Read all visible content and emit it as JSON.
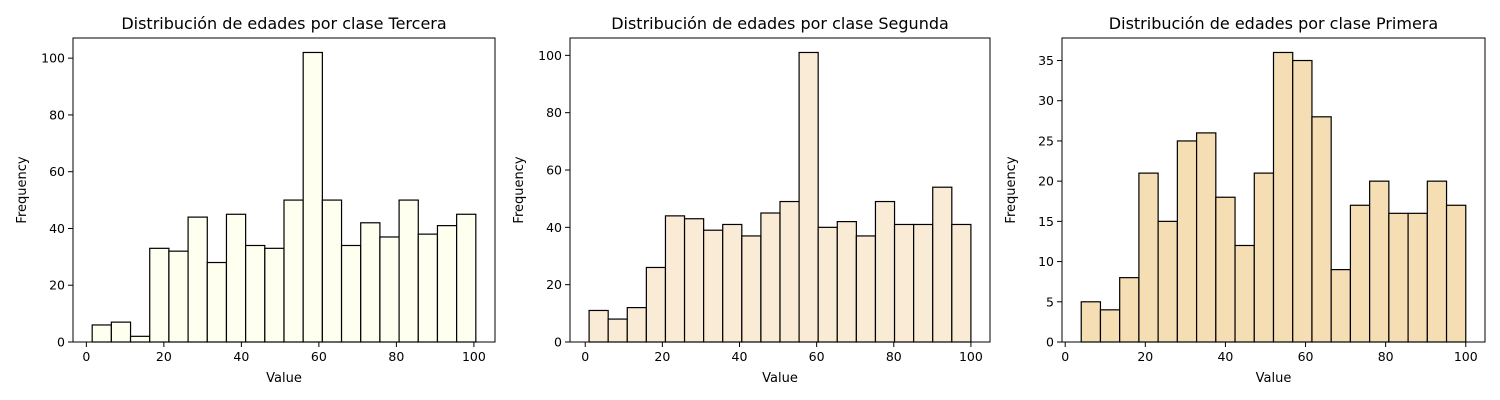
{
  "chart_data": [
    {
      "type": "bar",
      "title": "Distribución de edades por clase Tercera",
      "xlabel": "Value",
      "ylabel": "Frequency",
      "bar_color": "#fffff0",
      "bin_edges": [
        1.5,
        6.45,
        11.4,
        16.35,
        21.3,
        26.25,
        31.2,
        36.15,
        41.1,
        46.05,
        51.0,
        55.95,
        60.9,
        65.85,
        70.8,
        75.75,
        80.7,
        85.65,
        90.6,
        95.55,
        100.5
      ],
      "values": [
        6,
        7,
        2,
        33,
        32,
        44,
        28,
        45,
        34,
        33,
        50,
        102,
        50,
        34,
        42,
        37,
        50,
        38,
        41,
        45
      ],
      "xlim": [
        -3.45,
        105.45
      ],
      "ylim": [
        0,
        107.1
      ],
      "xticks": [
        0,
        20,
        40,
        60,
        80,
        100
      ],
      "yticks": [
        0,
        20,
        40,
        60,
        80,
        100
      ]
    },
    {
      "type": "bar",
      "title": "Distribución de edades por clase Segunda",
      "xlabel": "Value",
      "ylabel": "Frequency",
      "bar_color": "#faebd7",
      "bin_edges": [
        1.0,
        5.95,
        10.9,
        15.85,
        20.8,
        25.75,
        30.7,
        35.65,
        40.6,
        45.55,
        50.5,
        55.45,
        60.4,
        65.35,
        70.3,
        75.25,
        80.2,
        85.15,
        90.1,
        95.05,
        100.0
      ],
      "values": [
        11,
        8,
        12,
        26,
        44,
        43,
        39,
        41,
        37,
        45,
        49,
        101,
        40,
        42,
        37,
        49,
        41,
        41,
        54,
        41
      ],
      "xlim": [
        -3.95,
        104.95
      ],
      "ylim": [
        0,
        106.05
      ],
      "xticks": [
        0,
        20,
        40,
        60,
        80,
        100
      ],
      "yticks": [
        0,
        20,
        40,
        60,
        80,
        100
      ]
    },
    {
      "type": "bar",
      "title": "Distribución de edades por clase Primera",
      "xlabel": "Value",
      "ylabel": "Frequency",
      "bar_color": "#f5deb3",
      "bin_edges": [
        4.0,
        8.8,
        13.6,
        18.4,
        23.2,
        28.0,
        32.8,
        37.6,
        42.4,
        47.2,
        52.0,
        56.8,
        61.6,
        66.4,
        71.2,
        76.0,
        80.8,
        85.6,
        90.4,
        95.2,
        100.0
      ],
      "values": [
        5,
        4,
        8,
        21,
        15,
        25,
        26,
        18,
        12,
        21,
        36,
        35,
        28,
        9,
        17,
        20,
        16,
        16,
        20,
        17
      ],
      "xlim": [
        -0.8,
        104.8
      ],
      "ylim": [
        0,
        37.8
      ],
      "xticks": [
        0,
        20,
        40,
        60,
        80,
        100
      ],
      "yticks": [
        0,
        5,
        10,
        15,
        20,
        25,
        30,
        35
      ]
    }
  ]
}
